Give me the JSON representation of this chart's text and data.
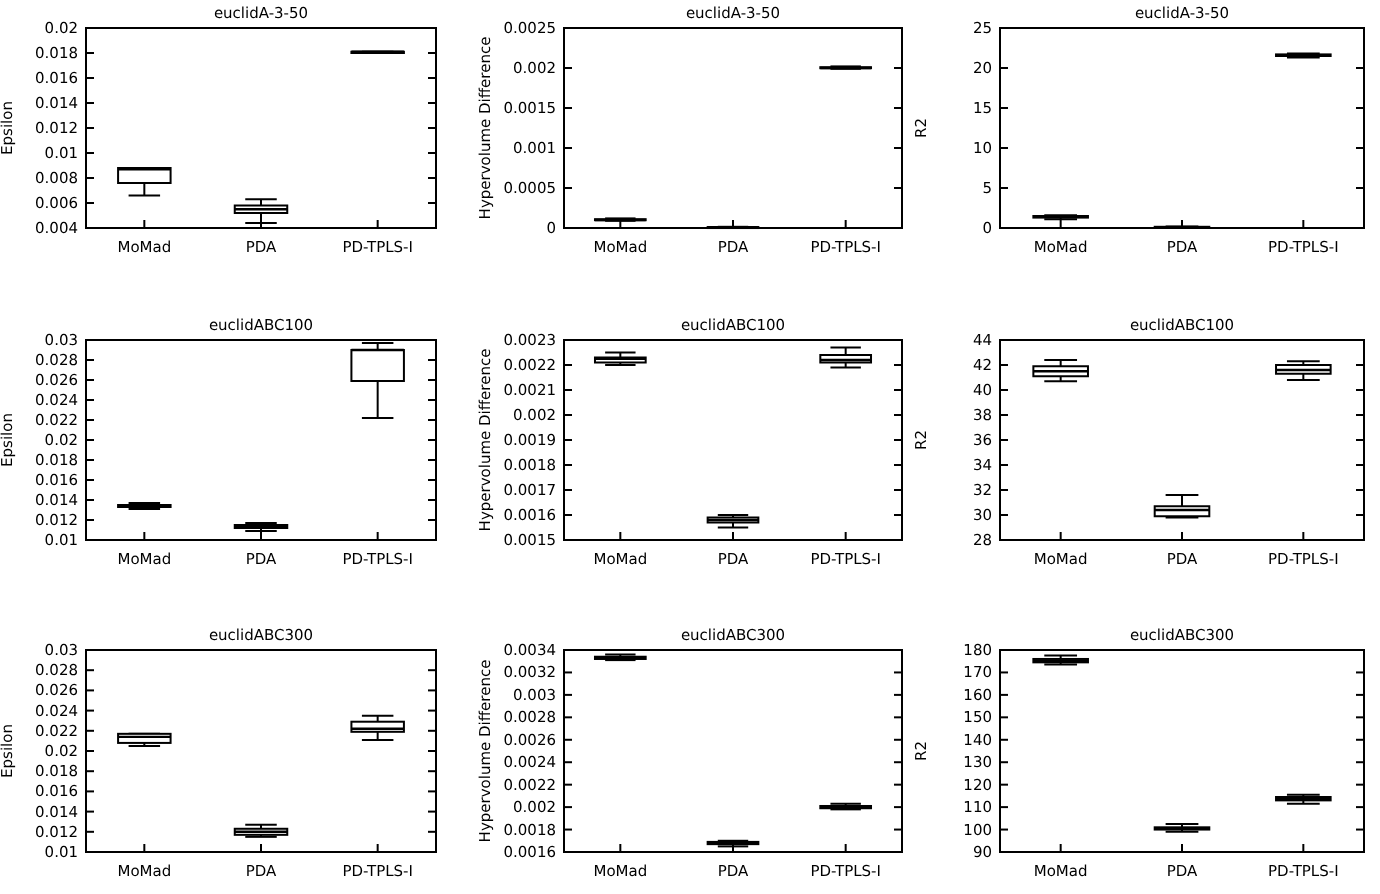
{
  "chart_data": [
    {
      "type": "box",
      "title": "euclidA-3-50",
      "ylabel": "Epsilon",
      "color": "#000000",
      "categories": [
        "MoMad",
        "PDA",
        "PD-TPLS-I"
      ],
      "ylim": [
        0.004,
        0.02
      ],
      "yticks": [
        0.004,
        0.006,
        0.008,
        0.01,
        0.012,
        0.014,
        0.016,
        0.018,
        0.02
      ],
      "boxes": [
        {
          "low": 0.0066,
          "q1": 0.0076,
          "median": 0.0087,
          "q3": 0.0088,
          "high": 0.0088
        },
        {
          "low": 0.0044,
          "q1": 0.0052,
          "median": 0.0055,
          "q3": 0.0058,
          "high": 0.0063
        },
        {
          "low": 0.018,
          "q1": 0.018,
          "median": 0.0181,
          "q3": 0.0181,
          "high": 0.0181
        }
      ]
    },
    {
      "type": "box",
      "title": "euclidA-3-50",
      "ylabel": "Hypervolume Difference",
      "color": "#000000",
      "categories": [
        "MoMad",
        "PDA",
        "PD-TPLS-I"
      ],
      "ylim": [
        0,
        0.0025
      ],
      "yticks": [
        0,
        0.0005,
        0.001,
        0.0015,
        0.002,
        0.0025
      ],
      "boxes": [
        {
          "low": 9e-05,
          "q1": 0.0001,
          "median": 0.0001,
          "q3": 0.00011,
          "high": 0.00012
        },
        {
          "low": 5e-06,
          "q1": 1e-05,
          "median": 1e-05,
          "q3": 1.2e-05,
          "high": 1.5e-05
        },
        {
          "low": 0.00199,
          "q1": 0.002,
          "median": 0.002,
          "q3": 0.00201,
          "high": 0.00202
        }
      ]
    },
    {
      "type": "box",
      "title": "euclidA-3-50",
      "ylabel": "R2",
      "color": "#000000",
      "categories": [
        "MoMad",
        "PDA",
        "PD-TPLS-I"
      ],
      "ylim": [
        0,
        25
      ],
      "yticks": [
        0,
        5,
        10,
        15,
        20,
        25
      ],
      "boxes": [
        {
          "low": 1.1,
          "q1": 1.3,
          "median": 1.4,
          "q3": 1.5,
          "high": 1.6
        },
        {
          "low": 0.05,
          "q1": 0.1,
          "median": 0.1,
          "q3": 0.15,
          "high": 0.2
        },
        {
          "low": 21.3,
          "q1": 21.5,
          "median": 21.6,
          "q3": 21.7,
          "high": 21.8
        }
      ]
    },
    {
      "type": "box",
      "title": "euclidABC100",
      "ylabel": "Epsilon",
      "color": "#000000",
      "categories": [
        "MoMad",
        "PDA",
        "PD-TPLS-I"
      ],
      "ylim": [
        0.01,
        0.03
      ],
      "yticks": [
        0.01,
        0.012,
        0.014,
        0.016,
        0.018,
        0.02,
        0.022,
        0.024,
        0.026,
        0.028,
        0.03
      ],
      "boxes": [
        {
          "low": 0.0131,
          "q1": 0.0133,
          "median": 0.0134,
          "q3": 0.0135,
          "high": 0.0137
        },
        {
          "low": 0.0109,
          "q1": 0.0112,
          "median": 0.0114,
          "q3": 0.0115,
          "high": 0.0117
        },
        {
          "low": 0.0222,
          "q1": 0.0259,
          "median": 0.029,
          "q3": 0.029,
          "high": 0.0297
        }
      ]
    },
    {
      "type": "box",
      "title": "euclidABC100",
      "ylabel": "Hypervolume Difference",
      "color": "#000000",
      "categories": [
        "MoMad",
        "PDA",
        "PD-TPLS-I"
      ],
      "ylim": [
        0.0015,
        0.0023
      ],
      "yticks": [
        0.0015,
        0.0016,
        0.0017,
        0.0018,
        0.0019,
        0.002,
        0.0021,
        0.0022,
        0.0023
      ],
      "boxes": [
        {
          "low": 0.0022,
          "q1": 0.00221,
          "median": 0.002225,
          "q3": 0.00223,
          "high": 0.00225
        },
        {
          "low": 0.00155,
          "q1": 0.00157,
          "median": 0.00158,
          "q3": 0.00159,
          "high": 0.0016
        },
        {
          "low": 0.00219,
          "q1": 0.00221,
          "median": 0.00222,
          "q3": 0.00224,
          "high": 0.00227
        }
      ]
    },
    {
      "type": "box",
      "title": "euclidABC100",
      "ylabel": "R2",
      "color": "#000000",
      "categories": [
        "MoMad",
        "PDA",
        "PD-TPLS-I"
      ],
      "ylim": [
        28,
        44
      ],
      "yticks": [
        28,
        30,
        32,
        34,
        36,
        38,
        40,
        42,
        44
      ],
      "boxes": [
        {
          "low": 40.7,
          "q1": 41.1,
          "median": 41.5,
          "q3": 41.9,
          "high": 42.4
        },
        {
          "low": 29.8,
          "q1": 29.9,
          "median": 30.4,
          "q3": 30.7,
          "high": 31.6
        },
        {
          "low": 40.8,
          "q1": 41.3,
          "median": 41.6,
          "q3": 42,
          "high": 42.3
        }
      ]
    },
    {
      "type": "box",
      "title": "euclidABC300",
      "ylabel": "Epsilon",
      "color": "#000000",
      "categories": [
        "MoMad",
        "PDA",
        "PD-TPLS-I"
      ],
      "ylim": [
        0.01,
        0.03
      ],
      "yticks": [
        0.01,
        0.012,
        0.014,
        0.016,
        0.018,
        0.02,
        0.022,
        0.024,
        0.026,
        0.028,
        0.03
      ],
      "boxes": [
        {
          "low": 0.0205,
          "q1": 0.0208,
          "median": 0.0214,
          "q3": 0.0217,
          "high": 0.0217
        },
        {
          "low": 0.0115,
          "q1": 0.0117,
          "median": 0.012,
          "q3": 0.0123,
          "high": 0.0127
        },
        {
          "low": 0.0211,
          "q1": 0.0219,
          "median": 0.0222,
          "q3": 0.0229,
          "high": 0.0235
        }
      ]
    },
    {
      "type": "box",
      "title": "euclidABC300",
      "ylabel": "Hypervolume Difference",
      "color": "#000000",
      "categories": [
        "MoMad",
        "PDA",
        "PD-TPLS-I"
      ],
      "ylim": [
        0.0016,
        0.0034
      ],
      "yticks": [
        0.0016,
        0.0018,
        0.002,
        0.0022,
        0.0024,
        0.0026,
        0.0028,
        0.003,
        0.0032,
        0.0034
      ],
      "boxes": [
        {
          "low": 0.00331,
          "q1": 0.00332,
          "median": 0.00333,
          "q3": 0.00334,
          "high": 0.00336
        },
        {
          "low": 0.00165,
          "q1": 0.00167,
          "median": 0.00168,
          "q3": 0.00169,
          "high": 0.0017
        },
        {
          "low": 0.00198,
          "q1": 0.00199,
          "median": 0.002,
          "q3": 0.00201,
          "high": 0.00203
        }
      ]
    },
    {
      "type": "box",
      "title": "euclidABC300",
      "ylabel": "R2",
      "color": "#000000",
      "categories": [
        "MoMad",
        "PDA",
        "PD-TPLS-I"
      ],
      "ylim": [
        90,
        180
      ],
      "yticks": [
        90,
        100,
        110,
        120,
        130,
        140,
        150,
        160,
        170,
        180
      ],
      "boxes": [
        {
          "low": 173.5,
          "q1": 174.5,
          "median": 175,
          "q3": 176,
          "high": 177.5
        },
        {
          "low": 99,
          "q1": 100,
          "median": 100.5,
          "q3": 101,
          "high": 102.5
        },
        {
          "low": 111.5,
          "q1": 113,
          "median": 113.5,
          "q3": 114.5,
          "high": 115.5
        }
      ]
    }
  ]
}
